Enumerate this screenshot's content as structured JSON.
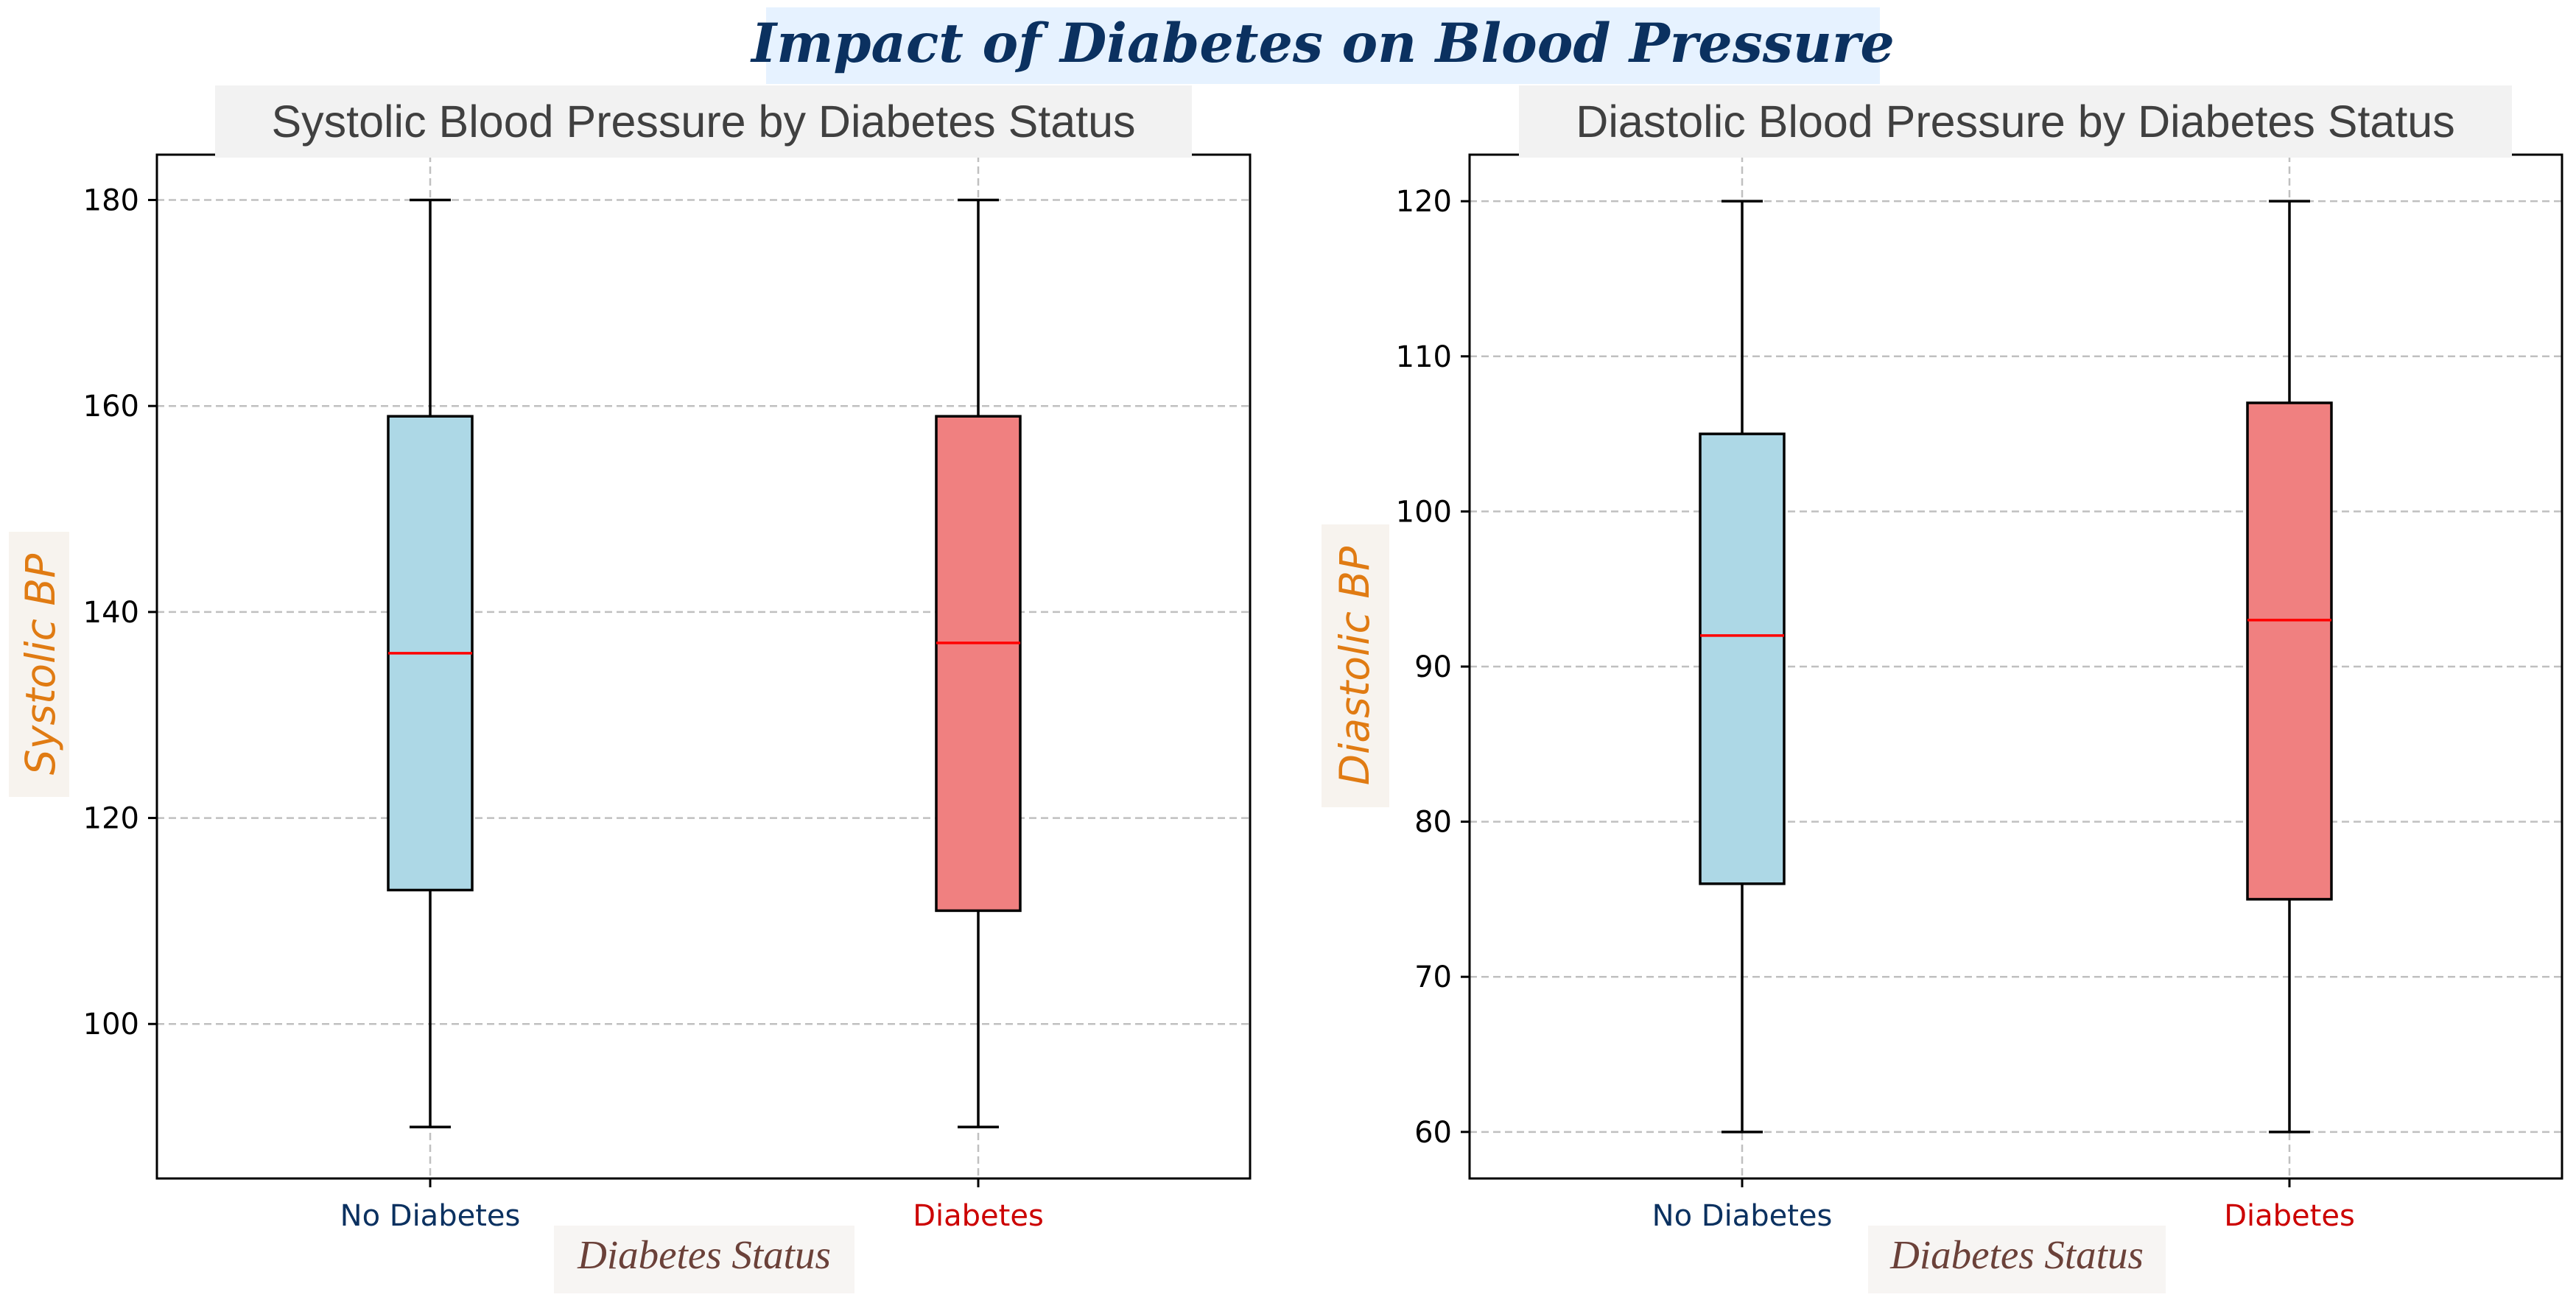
{
  "title": "Impact of Diabetes on Blood Pressure",
  "colors": {
    "title_bg": "#e6f2ff",
    "title_text": "#0b3160",
    "panel_title_bg": "#f2f2f2",
    "panel_title_text": "#404040",
    "ylabel_text": "#e07b13",
    "ylabel_bg": "#f7f3ee",
    "xlabel_text": "#6b4139",
    "xlabel_bg": "#f7f5f3",
    "no_diabetes_tick": "#0b3160",
    "diabetes_tick": "#cc0000",
    "no_diabetes_box": "#add8e6",
    "diabetes_box": "#f08080",
    "median": "#ff0000",
    "grid": "#c0c0c0"
  },
  "chart_data": [
    {
      "type": "box",
      "title": "Systolic Blood Pressure by Diabetes Status",
      "xlabel": "Diabetes Status",
      "ylabel": "Systolic BP",
      "categories": [
        "No Diabetes",
        "Diabetes"
      ],
      "ylim": [
        85,
        184.4
      ],
      "yticks": [
        100,
        120,
        140,
        160,
        180
      ],
      "grid": true,
      "boxes": [
        {
          "name": "No Diabetes",
          "whisker_low": 90,
          "q1": 113,
          "median": 136,
          "q3": 159,
          "whisker_high": 180
        },
        {
          "name": "Diabetes",
          "whisker_low": 90,
          "q1": 111,
          "median": 137,
          "q3": 159,
          "whisker_high": 180
        }
      ]
    },
    {
      "type": "box",
      "title": "Diastolic Blood Pressure by Diabetes Status",
      "xlabel": "Diabetes Status",
      "ylabel": "Diastolic BP",
      "categories": [
        "No Diabetes",
        "Diabetes"
      ],
      "ylim": [
        57,
        123
      ],
      "yticks": [
        60,
        70,
        80,
        90,
        100,
        110,
        120
      ],
      "grid": true,
      "boxes": [
        {
          "name": "No Diabetes",
          "whisker_low": 60,
          "q1": 76,
          "median": 92,
          "q3": 105,
          "whisker_high": 120
        },
        {
          "name": "Diabetes",
          "whisker_low": 60,
          "q1": 75,
          "median": 93,
          "q3": 107,
          "whisker_high": 120
        }
      ]
    }
  ]
}
